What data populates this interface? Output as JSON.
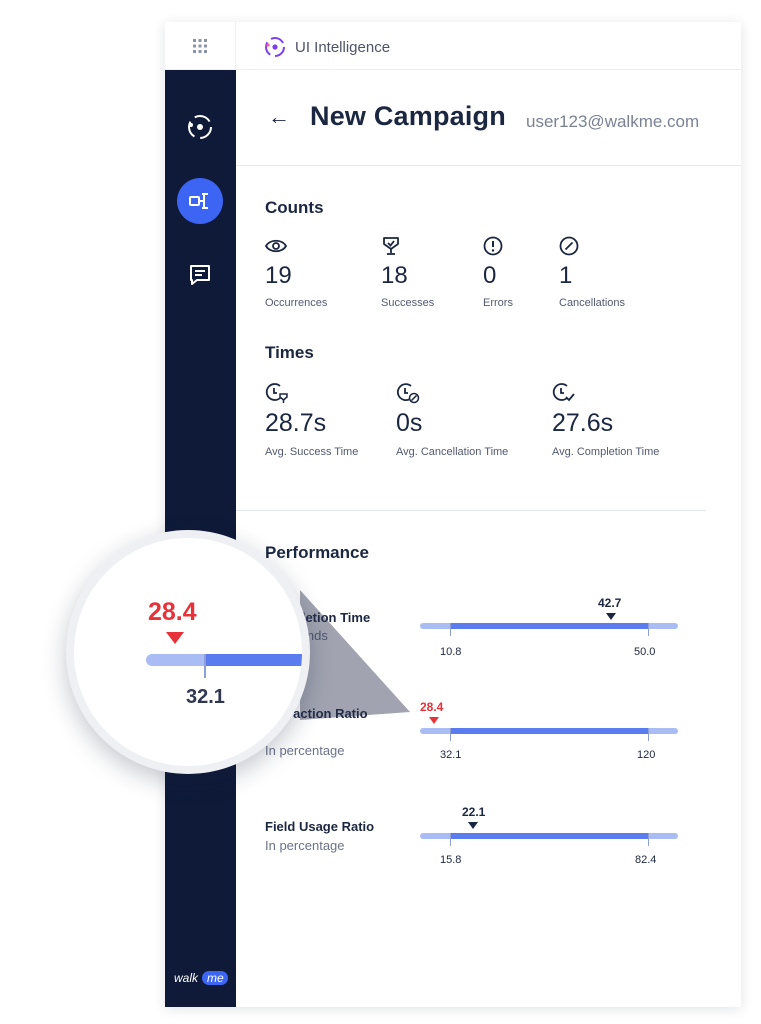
{
  "app": {
    "name": "UI Intelligence"
  },
  "header": {
    "back_label": "←",
    "title": "New Campaign",
    "user": "user123@walkme.com"
  },
  "sidebar": {
    "logo_text": "walk me"
  },
  "counts": {
    "title": "Counts",
    "items": [
      {
        "icon": "eye-icon",
        "value": "19",
        "label": "Occurrences"
      },
      {
        "icon": "trophy-icon",
        "value": "18",
        "label": "Successes"
      },
      {
        "icon": "error-icon",
        "value": "0",
        "label": "Errors"
      },
      {
        "icon": "cancel-icon",
        "value": "1",
        "label": "Cancellations"
      }
    ]
  },
  "times": {
    "title": "Times",
    "items": [
      {
        "icon": "clock-success-icon",
        "value": "28.7s",
        "label": "Avg. Success Time"
      },
      {
        "icon": "clock-cancel-icon",
        "value": "0s",
        "label": "Avg. Cancellation Time"
      },
      {
        "icon": "clock-check-icon",
        "value": "27.6s",
        "label": "Avg. Completion Time"
      }
    ]
  },
  "performance": {
    "title": "Performance",
    "metrics": [
      {
        "name": "Completion Time",
        "sub": "In seconds",
        "marker": "42.7",
        "marker_alert": false,
        "min": "10.8",
        "max": "50.0"
      },
      {
        "name": "Interaction Ratio",
        "sub": "In percentage",
        "marker": "28.4",
        "marker_alert": true,
        "min": "32.1",
        "max": "120"
      },
      {
        "name": "Field Usage Ratio",
        "sub": "In percentage",
        "marker": "22.1",
        "marker_alert": false,
        "min": "15.8",
        "max": "82.4"
      }
    ]
  },
  "magnifier": {
    "value": "28.4",
    "tick_label": "32.1"
  },
  "colors": {
    "sidebar": "#0e1a38",
    "accent": "#3c65f4",
    "alert": "#e8323a",
    "bar_fill": "#5b7cee",
    "bar_track": "#a9bcf3"
  }
}
